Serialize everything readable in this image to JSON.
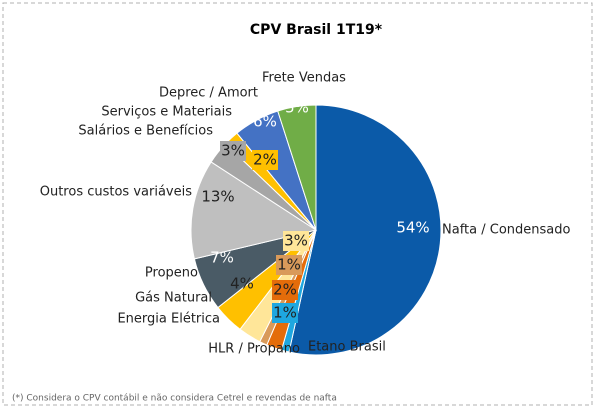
{
  "chart_data": {
    "type": "pie",
    "title": "CPV Brasil 1T19*",
    "categories": [
      "Nafta / Condensado",
      "Etano Brasil",
      "HLR / Propano",
      "Energia Elétrica",
      "Gás Natural",
      "Propeno",
      null,
      "Outros custos variáveis",
      "Salários e Benefícios",
      "Serviços e Materiais",
      "Deprec / Amort",
      "Frete Vendas"
    ],
    "values": [
      54,
      1,
      2,
      1,
      3,
      4,
      7,
      13,
      3,
      2,
      6,
      5
    ],
    "value_labels": [
      "54%",
      "1%",
      "2%",
      "1%",
      "3%",
      "4%",
      "7%",
      "13%",
      "3%",
      "2%",
      "6%",
      "5%"
    ],
    "colors": [
      "#0b5aa8",
      "#1ea7e0",
      "#e46c0a",
      "#d99a5a",
      "#ffe699",
      "#ffc000",
      "#4a5b66",
      "#bfbfbf",
      "#a6a6a6",
      "#ffc000",
      "#4472c4",
      "#70ad47"
    ],
    "footnote": "(*) Considera o CPV contábil e não considera Cetrel e revendas de nafta"
  }
}
